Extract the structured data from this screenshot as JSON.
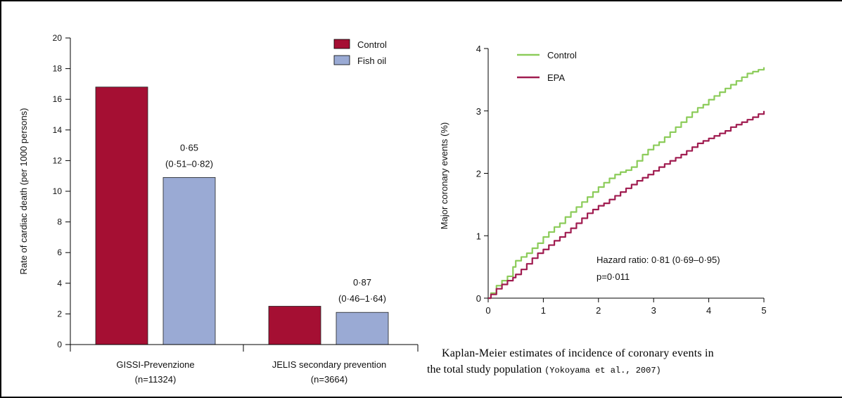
{
  "colors": {
    "control_bar": "#a50f33",
    "fishoil_bar": "#9aaad4",
    "control_line": "#8ccc5a",
    "epa_line": "#a01c50",
    "axis": "#000000",
    "text": "#111111"
  },
  "chart_data": [
    {
      "type": "bar",
      "categories": [
        "GISSI-Prevenzione",
        "JELIS secondary prevention"
      ],
      "category_sublabels": [
        "(n=11324)",
        "(n=3664)"
      ],
      "series": [
        {
          "name": "Control",
          "values": [
            16.8,
            2.5
          ]
        },
        {
          "name": "Fish oil",
          "values": [
            10.9,
            2.1
          ]
        }
      ],
      "annotations": [
        {
          "category": "GISSI-Prevenzione",
          "line1": "0·65",
          "line2": "(0·51–0·82)"
        },
        {
          "category": "JELIS secondary prevention",
          "line1": "0·87",
          "line2": "(0·46–1·64)"
        }
      ],
      "ylabel": "Rate of cardiac death (per 1000 persons)",
      "yticks": [
        "0",
        "2",
        "4",
        "6",
        "8",
        "10",
        "12",
        "14",
        "16",
        "18",
        "20"
      ],
      "ylim": [
        0,
        20
      ],
      "legend_position": "top-right"
    },
    {
      "type": "line",
      "series": [
        {
          "name": "Control",
          "x": [
            0,
            0.05,
            0.15,
            0.25,
            0.35,
            0.45,
            0.5,
            0.6,
            0.7,
            0.8,
            0.9,
            1.0,
            1.1,
            1.2,
            1.3,
            1.4,
            1.5,
            1.6,
            1.7,
            1.8,
            1.9,
            2.0,
            2.1,
            2.2,
            2.3,
            2.4,
            2.5,
            2.6,
            2.7,
            2.8,
            2.9,
            3.0,
            3.1,
            3.2,
            3.3,
            3.4,
            3.5,
            3.6,
            3.7,
            3.8,
            3.9,
            4.0,
            4.1,
            4.2,
            4.3,
            4.4,
            4.5,
            4.6,
            4.7,
            4.8,
            4.9,
            5.0
          ],
          "y": [
            0,
            0.08,
            0.2,
            0.28,
            0.35,
            0.5,
            0.6,
            0.66,
            0.72,
            0.8,
            0.88,
            0.98,
            1.06,
            1.14,
            1.2,
            1.3,
            1.38,
            1.46,
            1.54,
            1.62,
            1.7,
            1.78,
            1.85,
            1.92,
            1.98,
            2.02,
            2.05,
            2.1,
            2.2,
            2.3,
            2.38,
            2.45,
            2.5,
            2.58,
            2.66,
            2.74,
            2.82,
            2.9,
            2.98,
            3.05,
            3.1,
            3.18,
            3.24,
            3.3,
            3.36,
            3.42,
            3.48,
            3.54,
            3.6,
            3.63,
            3.66,
            3.7
          ]
        },
        {
          "name": "EPA",
          "x": [
            0,
            0.05,
            0.15,
            0.25,
            0.35,
            0.45,
            0.5,
            0.6,
            0.7,
            0.8,
            0.9,
            1.0,
            1.1,
            1.2,
            1.3,
            1.4,
            1.5,
            1.6,
            1.7,
            1.8,
            1.9,
            2.0,
            2.1,
            2.2,
            2.3,
            2.4,
            2.5,
            2.6,
            2.7,
            2.8,
            2.9,
            3.0,
            3.1,
            3.2,
            3.3,
            3.4,
            3.5,
            3.6,
            3.7,
            3.8,
            3.9,
            4.0,
            4.1,
            4.2,
            4.3,
            4.4,
            4.5,
            4.6,
            4.7,
            4.8,
            4.9,
            5.0
          ],
          "y": [
            0,
            0.06,
            0.15,
            0.22,
            0.28,
            0.33,
            0.38,
            0.46,
            0.55,
            0.64,
            0.72,
            0.78,
            0.85,
            0.92,
            0.98,
            1.05,
            1.12,
            1.2,
            1.28,
            1.36,
            1.42,
            1.48,
            1.52,
            1.58,
            1.64,
            1.7,
            1.76,
            1.82,
            1.88,
            1.93,
            1.98,
            2.04,
            2.1,
            2.15,
            2.2,
            2.25,
            2.3,
            2.36,
            2.42,
            2.48,
            2.52,
            2.56,
            2.6,
            2.64,
            2.68,
            2.74,
            2.78,
            2.82,
            2.86,
            2.9,
            2.95,
            3.0
          ]
        }
      ],
      "ylabel": "Major coronary events (%)",
      "xticks": [
        "0",
        "1",
        "2",
        "3",
        "4",
        "5"
      ],
      "yticks": [
        "0",
        "1",
        "2",
        "3",
        "4"
      ],
      "xlim": [
        0,
        5
      ],
      "ylim": [
        0,
        4
      ],
      "annotations": [
        "Hazard ratio: 0·81 (0·69–0·95)",
        "p=0·011"
      ],
      "legend_position": "top-left"
    }
  ],
  "caption": {
    "line1": "Kaplan-Meier estimates of incidence of coronary events in",
    "line2_main": "the total study population ",
    "line2_cite": "(Yokoyama et al., 2007)"
  }
}
